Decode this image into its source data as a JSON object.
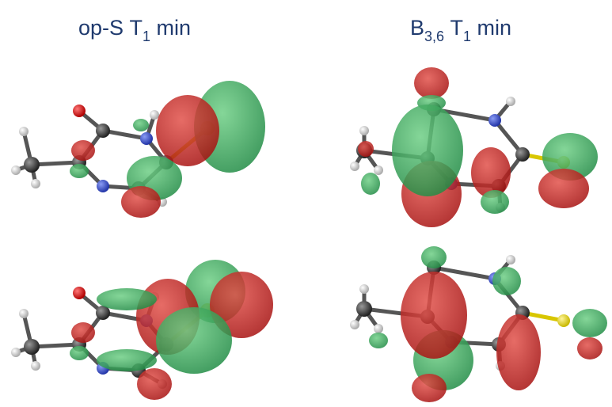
{
  "titles": [
    {
      "base": "op-S T",
      "sub": "1",
      "end": " min"
    },
    {
      "base": "B",
      "sub": "3,6",
      "mid": " T",
      "sub2": "1",
      "end": " min"
    }
  ]
}
